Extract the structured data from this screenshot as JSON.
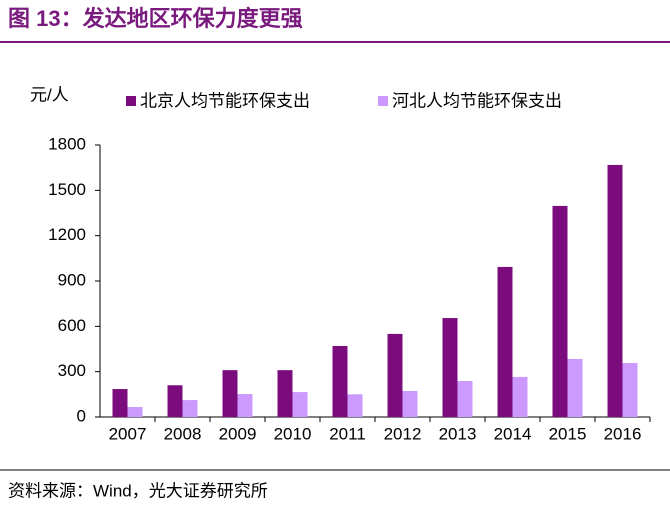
{
  "chart_data": {
    "type": "bar",
    "title": "图 13：发达地区环保力度更强",
    "y_label": "元/人",
    "source": "资料来源：Wind，光大证券研究所",
    "categories": [
      "2007",
      "2008",
      "2009",
      "2010",
      "2011",
      "2012",
      "2013",
      "2014",
      "2015",
      "2016"
    ],
    "series": [
      {
        "name": "北京人均节能环保支出",
        "color": "#7b0c7e",
        "values": [
          185,
          210,
          310,
          310,
          470,
          550,
          655,
          993,
          1397,
          1668
        ]
      },
      {
        "name": "河北人均节能环保支出",
        "color": "#cc99ff",
        "values": [
          66,
          112,
          152,
          165,
          150,
          172,
          238,
          265,
          384,
          357
        ]
      }
    ],
    "ylim": [
      0,
      1800
    ],
    "yticks": [
      0,
      300,
      600,
      900,
      1200,
      1500,
      1800
    ],
    "grid": false
  }
}
